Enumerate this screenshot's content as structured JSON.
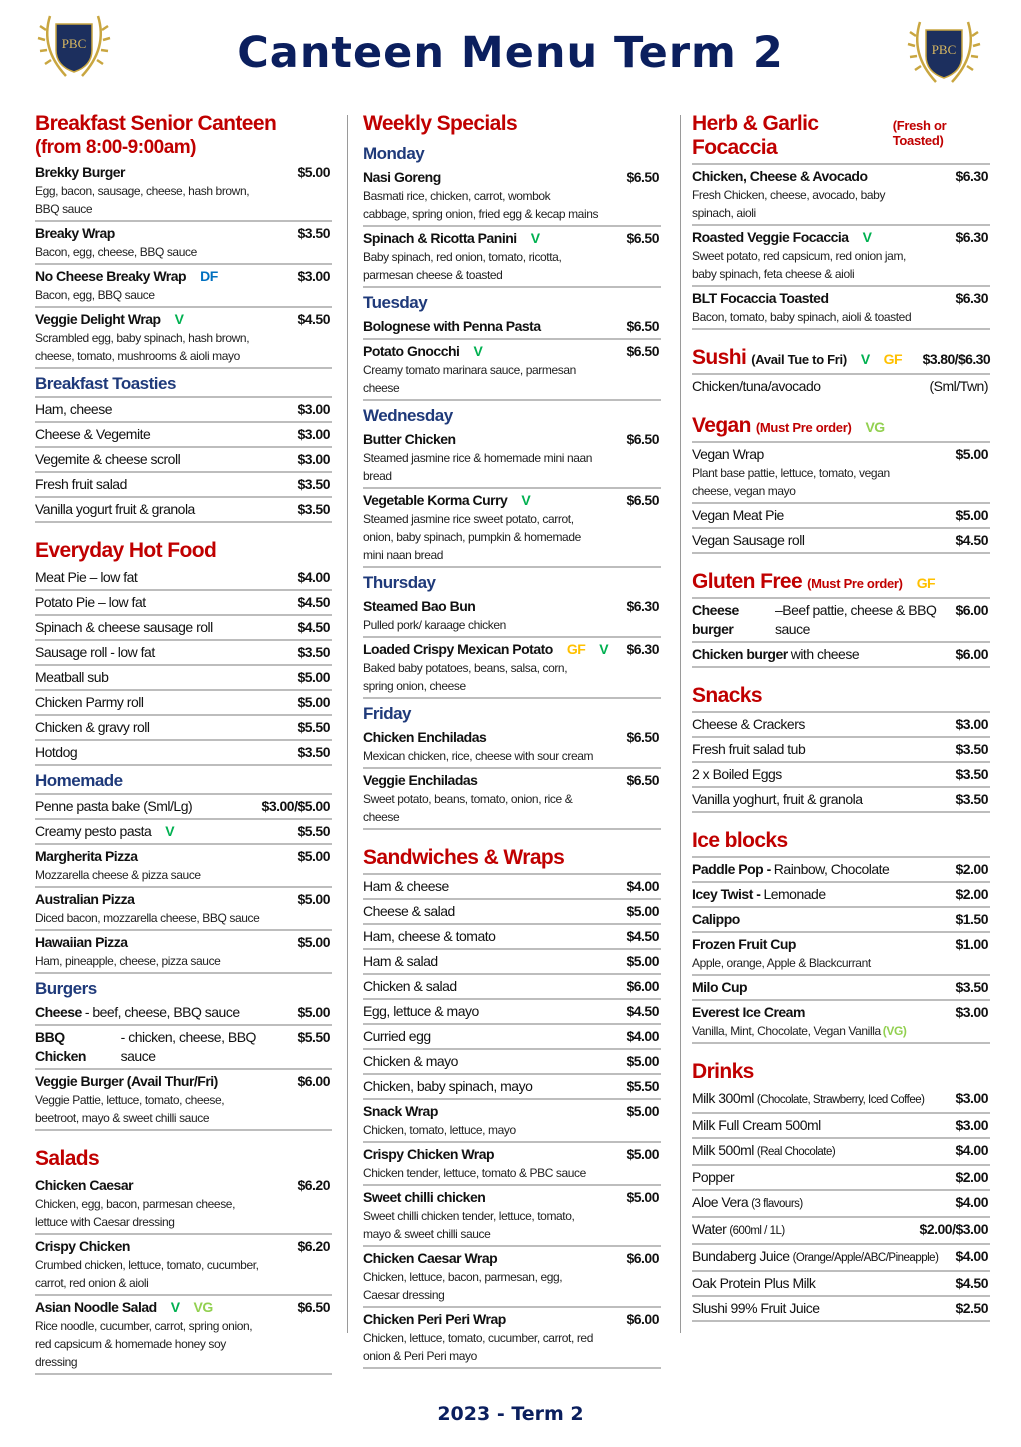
{
  "header": {
    "title": "Canteen Menu Term 2",
    "logo_text": "PBC"
  },
  "footer": "2023 - Term 2",
  "tag_colors": {
    "V": "#00b050",
    "GF": "#ffc000",
    "DF": "#0070c0",
    "VG": "#92d050"
  },
  "columns": [
    {
      "sections": [
        {
          "title": "Breakfast Senior Canteen",
          "sub": "(from 8:00-9:00am)",
          "groups": [
            {
              "items": [
                {
                  "name": "Brekky Burger",
                  "bold": true,
                  "price": "$5.00",
                  "desc": "Egg, bacon, sausage, cheese, hash brown, BBQ sauce"
                },
                {
                  "name": "Breaky Wrap",
                  "bold": true,
                  "price": "$3.50",
                  "desc": "Bacon, egg, cheese, BBQ sauce"
                },
                {
                  "name": "No Cheese Breaky Wrap",
                  "bold": true,
                  "tags": [
                    "DF"
                  ],
                  "price": "$3.00",
                  "desc": "Bacon, egg, BBQ sauce"
                },
                {
                  "name": "Veggie Delight Wrap",
                  "bold": true,
                  "tags": [
                    "V"
                  ],
                  "price": "$4.50",
                  "desc": "Scrambled egg, baby spinach, hash brown, cheese, tomato, mushrooms & aioli mayo"
                }
              ]
            },
            {
              "heading": "Breakfast Toasties",
              "bordered": true,
              "items": [
                {
                  "name": "Ham, cheese",
                  "price": "$3.00"
                },
                {
                  "name": "Cheese & Vegemite",
                  "price": "$3.00"
                },
                {
                  "name": "Vegemite & cheese scroll",
                  "price": "$3.00"
                },
                {
                  "name": "Fresh fruit salad",
                  "price": "$3.50"
                },
                {
                  "name": "Vanilla yogurt fruit & granola",
                  "price": "$3.50"
                }
              ]
            }
          ]
        },
        {
          "title": "Everyday Hot Food",
          "groups": [
            {
              "items": [
                {
                  "name": "Meat Pie – low fat",
                  "price": "$4.00"
                },
                {
                  "name": "Potato Pie – low fat",
                  "price": "$4.50"
                },
                {
                  "name": "Spinach & cheese sausage roll",
                  "price": "$4.50"
                },
                {
                  "name": "Sausage roll - low fat",
                  "price": "$3.50"
                },
                {
                  "name": "Meatball sub",
                  "price": "$5.00"
                },
                {
                  "name": "Chicken Parmy roll",
                  "price": "$5.00"
                },
                {
                  "name": "Chicken & gravy roll",
                  "price": "$5.50"
                },
                {
                  "name": "Hotdog",
                  "price": "$3.50"
                }
              ]
            },
            {
              "heading": "Homemade",
              "items": [
                {
                  "name": "Penne pasta bake (Sml/Lg)",
                  "price": "$3.00/$5.00",
                  "top": true
                },
                {
                  "name": "Creamy pesto pasta",
                  "tags": [
                    "V"
                  ],
                  "price": "$5.50"
                },
                {
                  "name": "Margherita Pizza",
                  "bold": true,
                  "price": "$5.00",
                  "desc": "Mozzarella cheese & pizza sauce"
                },
                {
                  "name": "Australian Pizza",
                  "bold": true,
                  "price": "$5.00",
                  "desc": "Diced bacon, mozzarella cheese, BBQ sauce"
                },
                {
                  "name": "Hawaiian Pizza",
                  "bold": true,
                  "price": "$5.00",
                  "desc": "Ham, pineapple, cheese, pizza sauce"
                }
              ]
            },
            {
              "heading": "Burgers",
              "items": [
                {
                  "name": "Cheese",
                  "bold": true,
                  "note": "- beef, cheese, BBQ sauce",
                  "price": "$5.00"
                },
                {
                  "name": "BBQ Chicken",
                  "bold": true,
                  "note": "- chicken, cheese, BBQ sauce",
                  "price": "$5.50"
                },
                {
                  "name": "Veggie Burger (Avail Thur/Fri)",
                  "bold": true,
                  "price": "$6.00",
                  "desc": "Veggie Pattie, lettuce, tomato, cheese, beetroot, mayo & sweet chilli sauce"
                }
              ]
            }
          ]
        },
        {
          "title": "Salads",
          "groups": [
            {
              "items": [
                {
                  "name": "Chicken Caesar",
                  "bold": true,
                  "price": "$6.20",
                  "desc": "Chicken, egg, bacon, parmesan cheese, lettuce with Caesar dressing"
                },
                {
                  "name": "Crispy Chicken",
                  "bold": true,
                  "price": "$6.20",
                  "desc": "Crumbed chicken, lettuce, tomato, cucumber, carrot, red onion & aioli"
                },
                {
                  "name": "Asian Noodle Salad",
                  "bold": true,
                  "tags": [
                    "V",
                    "VG"
                  ],
                  "price": "$6.50",
                  "desc": "Rice noodle, cucumber, carrot, spring onion, red capsicum & homemade honey soy dressing"
                }
              ]
            }
          ]
        }
      ]
    },
    {
      "sections": [
        {
          "title": "Weekly Specials",
          "groups": [
            {
              "heading": "Monday",
              "items": [
                {
                  "name": "Nasi Goreng",
                  "bold": true,
                  "price": "$6.50",
                  "desc": "Basmati rice, chicken, carrot, wombok cabbage, spring onion, fried egg & kecap mains"
                },
                {
                  "name": "Spinach & Ricotta Panini",
                  "bold": true,
                  "tags": [
                    "V"
                  ],
                  "price": "$6.50",
                  "desc": "Baby spinach, red onion, tomato, ricotta, parmesan cheese & toasted"
                }
              ]
            },
            {
              "heading": "Tuesday",
              "items": [
                {
                  "name": "Bolognese with Penna Pasta",
                  "bold": true,
                  "price": "$6.50"
                },
                {
                  "name": "Potato Gnocchi",
                  "bold": true,
                  "tags": [
                    "V"
                  ],
                  "price": "$6.50",
                  "desc": "Creamy tomato marinara sauce, parmesan cheese"
                }
              ]
            },
            {
              "heading": "Wednesday",
              "items": [
                {
                  "name": "Butter Chicken",
                  "bold": true,
                  "price": "$6.50",
                  "desc": "Steamed jasmine rice & homemade mini naan bread"
                },
                {
                  "name": "Vegetable Korma Curry",
                  "bold": true,
                  "tags": [
                    "V"
                  ],
                  "price": "$6.50",
                  "desc": "Steamed jasmine rice sweet potato, carrot, onion, baby spinach, pumpkin & homemade mini naan bread"
                }
              ]
            },
            {
              "heading": "Thursday",
              "items": [
                {
                  "name": "Steamed Bao Bun",
                  "bold": true,
                  "price": "$6.30",
                  "desc": "Pulled pork/ karaage chicken"
                },
                {
                  "name": "Loaded Crispy Mexican Potato",
                  "bold": true,
                  "tags": [
                    "GF",
                    "V"
                  ],
                  "price": "$6.30",
                  "desc": "Baked baby potatoes, beans, salsa, corn, spring onion, cheese"
                }
              ]
            },
            {
              "heading": "Friday",
              "items": [
                {
                  "name": "Chicken Enchiladas",
                  "bold": true,
                  "price": "$6.50",
                  "desc": "Mexican chicken, rice, cheese with sour cream"
                },
                {
                  "name": "Veggie Enchiladas",
                  "bold": true,
                  "price": "$6.50",
                  "desc": "Sweet potato, beans, tomato, onion, rice & cheese"
                }
              ]
            }
          ]
        },
        {
          "title": "Sandwiches & Wraps",
          "groups": [
            {
              "items": [
                {
                  "name": "Ham & cheese",
                  "price": "$4.00",
                  "top": true
                },
                {
                  "name": "Cheese & salad",
                  "price": "$5.00"
                },
                {
                  "name": "Ham, cheese & tomato",
                  "price": "$4.50"
                },
                {
                  "name": "Ham & salad",
                  "price": "$5.00"
                },
                {
                  "name": "Chicken & salad",
                  "price": "$6.00"
                },
                {
                  "name": "Egg, lettuce & mayo",
                  "price": "$4.50"
                },
                {
                  "name": "Curried egg",
                  "price": "$4.00"
                },
                {
                  "name": "Chicken & mayo",
                  "price": "$5.00"
                },
                {
                  "name": "Chicken, baby spinach, mayo",
                  "price": "$5.50"
                },
                {
                  "name": "Snack Wrap",
                  "bold": true,
                  "price": "$5.00",
                  "desc": "Chicken, tomato, lettuce, mayo"
                },
                {
                  "name": "Crispy Chicken Wrap",
                  "bold": true,
                  "price": "$5.00",
                  "desc": "Chicken tender, lettuce, tomato & PBC sauce"
                },
                {
                  "name": "Sweet chilli chicken",
                  "bold": true,
                  "price": "$5.00",
                  "desc": "Sweet chilli chicken tender, lettuce, tomato, mayo & sweet chilli sauce"
                },
                {
                  "name": "Chicken Caesar Wrap",
                  "bold": true,
                  "price": "$6.00",
                  "desc": "Chicken, lettuce, bacon, parmesan, egg, Caesar dressing"
                },
                {
                  "name": "Chicken Peri Peri Wrap",
                  "bold": true,
                  "price": "$6.00",
                  "desc": "Chicken, lettuce, tomato, cucumber, carrot, red onion & Peri Peri mayo"
                }
              ]
            }
          ]
        }
      ]
    },
    {
      "sections": [
        {
          "title": "Herb & Garlic Focaccia",
          "note": "(Fresh or Toasted)",
          "groups": [
            {
              "items": [
                {
                  "name": "Chicken, Cheese & Avocado",
                  "bold": true,
                  "price": "$6.30",
                  "desc": "Fresh Chicken, cheese, avocado, baby spinach, aioli",
                  "top": true
                },
                {
                  "name": "Roasted Veggie Focaccia",
                  "bold": true,
                  "tags": [
                    "V"
                  ],
                  "price": "$6.30",
                  "desc": "Sweet potato, red capsicum, red onion jam, baby spinach, feta cheese & aioli"
                },
                {
                  "name": "BLT Focaccia Toasted",
                  "bold": true,
                  "price": "$6.30",
                  "desc": "Bacon, tomato, baby spinach, aioli & toasted"
                }
              ]
            }
          ]
        },
        {
          "title": "Sushi",
          "note": "(Avail Tue to Fri)",
          "note_dark": true,
          "tags": [
            "V",
            "GF"
          ],
          "price": "$3.80/$6.30",
          "groups": [
            {
              "items": [
                {
                  "name": "Chicken/tuna/avocado",
                  "price": "(Sml/Twn)",
                  "price_plain": true,
                  "top": true,
                  "no_border": true
                }
              ]
            }
          ]
        },
        {
          "title": "Vegan",
          "note": "(Must Pre order)",
          "tags": [
            "VG"
          ],
          "groups": [
            {
              "items": [
                {
                  "name": "Vegan Wrap",
                  "price": "$5.00",
                  "desc": "Plant base pattie, lettuce, tomato, vegan cheese, vegan mayo",
                  "top": true
                },
                {
                  "name": "Vegan Meat Pie",
                  "price": "$5.00"
                },
                {
                  "name": "Vegan Sausage roll",
                  "price": "$4.50"
                }
              ]
            }
          ]
        },
        {
          "title": "Gluten Free",
          "note": "(Must Pre order)",
          "tags": [
            "GF"
          ],
          "groups": [
            {
              "items": [
                {
                  "name": "Cheese burger",
                  "bold": true,
                  "note": "–Beef pattie, cheese & BBQ sauce",
                  "price": "$6.00",
                  "top": true
                },
                {
                  "name": "Chicken burger",
                  "bold": true,
                  "note": "with cheese",
                  "price": "$6.00"
                }
              ]
            }
          ]
        },
        {
          "title": "Snacks",
          "groups": [
            {
              "items": [
                {
                  "name": "Cheese & Crackers",
                  "price": "$3.00",
                  "top": true
                },
                {
                  "name": "Fresh fruit salad tub",
                  "price": "$3.50"
                },
                {
                  "name": "2 x Boiled Eggs",
                  "price": "$3.50"
                },
                {
                  "name": "Vanilla yoghurt, fruit & granola",
                  "price": "$3.50"
                }
              ]
            }
          ]
        },
        {
          "title": "Ice blocks",
          "groups": [
            {
              "items": [
                {
                  "name": "Paddle Pop -",
                  "bold": true,
                  "note": "Rainbow, Chocolate",
                  "price": "$2.00",
                  "top": true
                },
                {
                  "name": "Icey Twist -",
                  "bold": true,
                  "note": "Lemonade",
                  "price": "$2.00"
                },
                {
                  "name": "Calippo",
                  "bold": true,
                  "price": "$1.50"
                },
                {
                  "name": "Frozen Fruit Cup",
                  "bold": true,
                  "price": "$1.00",
                  "desc": "Apple, orange, Apple & Blackcurrant"
                },
                {
                  "name": "Milo Cup",
                  "bold": true,
                  "price": "$3.50"
                },
                {
                  "name": "Everest Ice Cream",
                  "bold": true,
                  "price": "$3.00",
                  "desc": "Vanilla, Mint, Chocolate, Vegan Vanilla",
                  "desc_tag": "(VG)"
                }
              ]
            }
          ]
        },
        {
          "title": "Drinks",
          "groups": [
            {
              "items": [
                {
                  "name": "Milk 300ml",
                  "note": "(Chocolate, Strawberry, Iced Coffee)",
                  "small_note": true,
                  "price": "$3.00"
                },
                {
                  "name": "Milk Full Cream 500ml",
                  "price": "$3.00"
                },
                {
                  "name": "Milk 500ml",
                  "note": "(Real Chocolate)",
                  "small_note": true,
                  "price": "$4.00"
                },
                {
                  "name": "Popper",
                  "price": "$2.00"
                },
                {
                  "name": "Aloe Vera",
                  "note": "(3 flavours)",
                  "small_note": true,
                  "price": "$4.00"
                },
                {
                  "name": "Water",
                  "note": "(600ml / 1L)",
                  "small_note": true,
                  "price": "$2.00/$3.00"
                },
                {
                  "name": "Bundaberg Juice",
                  "note": "(Orange/Apple/ABC/Pineapple)",
                  "small_note": true,
                  "price": "$4.00"
                },
                {
                  "name": "Oak Protein Plus Milk",
                  "price": "$4.50"
                },
                {
                  "name": "Slushi 99% Fruit Juice",
                  "price": "$2.50"
                }
              ]
            }
          ]
        }
      ]
    }
  ]
}
